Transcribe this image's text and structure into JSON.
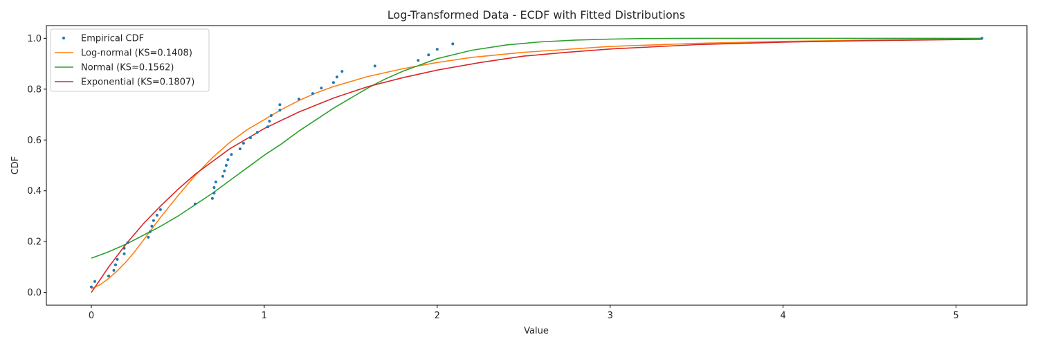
{
  "chart_data": {
    "type": "line",
    "title": "Log-Transformed Data - ECDF with Fitted Distributions",
    "xlabel": "Value",
    "ylabel": "CDF",
    "xlim": [
      -0.26,
      5.41
    ],
    "ylim": [
      -0.05,
      1.05
    ],
    "xticks": [
      0,
      1,
      2,
      3,
      4,
      5
    ],
    "yticks": [
      0.0,
      0.2,
      0.4,
      0.6,
      0.8,
      1.0
    ],
    "grid": false,
    "legend_position": "top-left",
    "points": {
      "name": "Empirical CDF",
      "color": "#1f77b4",
      "x": [
        0.0,
        0.02,
        0.1,
        0.13,
        0.14,
        0.15,
        0.19,
        0.19,
        0.21,
        0.33,
        0.34,
        0.35,
        0.36,
        0.38,
        0.4,
        0.6,
        0.7,
        0.71,
        0.71,
        0.72,
        0.76,
        0.77,
        0.78,
        0.79,
        0.81,
        0.86,
        0.88,
        0.92,
        0.96,
        1.02,
        1.03,
        1.04,
        1.09,
        1.09,
        1.2,
        1.28,
        1.33,
        1.4,
        1.42,
        1.45,
        1.64,
        1.89,
        1.95,
        2.0,
        2.09,
        5.15
      ],
      "y": [
        0.022,
        0.043,
        0.065,
        0.087,
        0.109,
        0.13,
        0.152,
        0.174,
        0.196,
        0.217,
        0.239,
        0.261,
        0.283,
        0.304,
        0.326,
        0.348,
        0.37,
        0.391,
        0.413,
        0.435,
        0.457,
        0.478,
        0.5,
        0.522,
        0.543,
        0.565,
        0.587,
        0.609,
        0.63,
        0.652,
        0.674,
        0.696,
        0.717,
        0.739,
        0.761,
        0.783,
        0.804,
        0.826,
        0.848,
        0.87,
        0.891,
        0.913,
        0.935,
        0.957,
        0.978,
        1.0
      ]
    },
    "series": [
      {
        "name": "Log-normal (KS=0.1408)",
        "color": "#ff7f0e",
        "x": [
          0.0,
          0.05,
          0.1,
          0.15,
          0.2,
          0.25,
          0.3,
          0.35,
          0.4,
          0.5,
          0.6,
          0.7,
          0.8,
          0.9,
          1.0,
          1.1,
          1.2,
          1.3,
          1.4,
          1.5,
          1.6,
          1.8,
          2.0,
          2.2,
          2.5,
          3.0,
          3.5,
          4.0,
          4.5,
          5.15
        ],
        "y": [
          0.015,
          0.03,
          0.055,
          0.085,
          0.12,
          0.16,
          0.205,
          0.25,
          0.295,
          0.38,
          0.46,
          0.53,
          0.59,
          0.64,
          0.68,
          0.72,
          0.755,
          0.785,
          0.81,
          0.83,
          0.85,
          0.88,
          0.905,
          0.925,
          0.945,
          0.968,
          0.98,
          0.988,
          0.993,
          0.997
        ]
      },
      {
        "name": "Normal (KS=0.1562)",
        "color": "#2ca02c",
        "x": [
          0.0,
          0.1,
          0.2,
          0.3,
          0.4,
          0.5,
          0.6,
          0.7,
          0.8,
          0.9,
          1.0,
          1.1,
          1.2,
          1.3,
          1.4,
          1.5,
          1.6,
          1.7,
          1.8,
          1.9,
          2.0,
          2.2,
          2.4,
          2.6,
          2.8,
          3.0,
          3.2,
          3.5,
          4.0,
          4.5,
          5.15
        ],
        "y": [
          0.135,
          0.16,
          0.19,
          0.225,
          0.26,
          0.3,
          0.345,
          0.39,
          0.44,
          0.49,
          0.54,
          0.585,
          0.635,
          0.68,
          0.725,
          0.765,
          0.805,
          0.84,
          0.87,
          0.895,
          0.92,
          0.953,
          0.974,
          0.986,
          0.993,
          0.997,
          0.999,
          1.0,
          1.0,
          1.0,
          1.0
        ]
      },
      {
        "name": "Exponential (KS=0.1807)",
        "color": "#d62728",
        "x": [
          0.0,
          0.05,
          0.1,
          0.15,
          0.2,
          0.3,
          0.4,
          0.5,
          0.6,
          0.7,
          0.8,
          0.9,
          1.0,
          1.2,
          1.4,
          1.6,
          1.8,
          2.0,
          2.25,
          2.5,
          2.75,
          3.0,
          3.5,
          4.0,
          4.5,
          5.15
        ],
        "y": [
          0.0,
          0.05,
          0.1,
          0.145,
          0.19,
          0.27,
          0.34,
          0.405,
          0.465,
          0.515,
          0.565,
          0.605,
          0.645,
          0.71,
          0.765,
          0.81,
          0.845,
          0.875,
          0.905,
          0.93,
          0.945,
          0.958,
          0.975,
          0.985,
          0.991,
          0.996
        ]
      }
    ]
  }
}
